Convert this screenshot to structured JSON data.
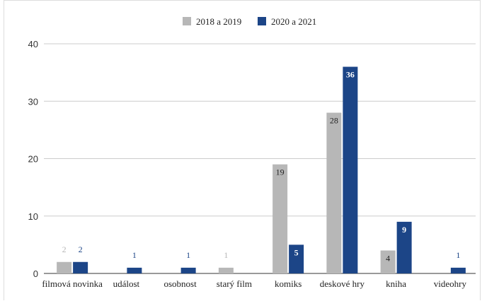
{
  "chart_data": {
    "type": "bar",
    "categories": [
      "filmová novinka",
      "událost",
      "osobnost",
      "starý film",
      "komiks",
      "deskové hry",
      "kniha",
      "videohry"
    ],
    "series": [
      {
        "name": "2018 a 2019",
        "color": "#b7b7b7",
        "values": [
          2,
          0,
          0,
          1,
          19,
          28,
          4,
          0
        ]
      },
      {
        "name": "2020 a 2021",
        "color": "#1c4587",
        "values": [
          2,
          1,
          1,
          0,
          5,
          36,
          9,
          1
        ]
      }
    ],
    "data_labels": [
      [
        "2",
        "",
        "",
        "1",
        "19",
        "28",
        "4",
        ""
      ],
      [
        "2",
        "1",
        "1",
        "",
        "5",
        "36",
        "9",
        "1"
      ]
    ],
    "y_ticks": [
      0,
      10,
      20,
      30,
      40
    ],
    "ylim": [
      0,
      40
    ],
    "grid": true,
    "legend_position": "top-center",
    "title": "",
    "xlabel": "",
    "ylabel": ""
  }
}
